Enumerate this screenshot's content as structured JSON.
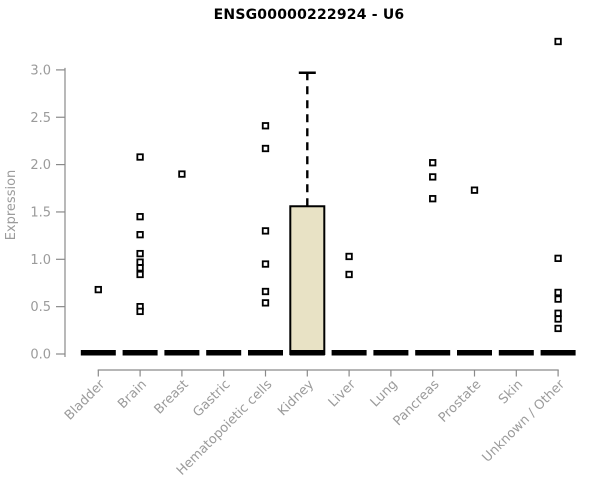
{
  "chart_data": {
    "type": "boxplot",
    "title": "ENSG00000222924 - U6",
    "ylabel": "Expression",
    "xlabel": "",
    "grid": false,
    "legend": "none",
    "yaxis": {
      "min": 0.0,
      "max": 3.0,
      "tick_values": [
        0.0,
        0.5,
        1.0,
        1.5,
        2.0,
        2.5,
        3.0
      ],
      "tick_labels": [
        "0.0",
        "0.5",
        "1.0",
        "1.5",
        "2.0",
        "2.5",
        "3.0"
      ]
    },
    "categories": [
      "Bladder",
      "Brain",
      "Breast",
      "Gastric",
      "Hematopoietic cells",
      "Kidney",
      "Liver",
      "Lung",
      "Pancreas",
      "Prostate",
      "Skin",
      "Unknown / Other"
    ],
    "boxes": [
      {
        "category": "Bladder",
        "q1": 0,
        "median": 0,
        "q3": 0,
        "whisker_low": 0,
        "whisker_high": 0,
        "outliers": [
          0.68
        ]
      },
      {
        "category": "Brain",
        "q1": 0,
        "median": 0,
        "q3": 0,
        "whisker_low": 0,
        "whisker_high": 0,
        "outliers": [
          2.08,
          1.45,
          1.26,
          1.06,
          0.97,
          0.91,
          0.84,
          0.5,
          0.45
        ]
      },
      {
        "category": "Breast",
        "q1": 0,
        "median": 0,
        "q3": 0,
        "whisker_low": 0,
        "whisker_high": 0,
        "outliers": [
          1.9
        ]
      },
      {
        "category": "Gastric",
        "q1": 0,
        "median": 0,
        "q3": 0,
        "whisker_low": 0,
        "whisker_high": 0,
        "outliers": []
      },
      {
        "category": "Hematopoietic cells",
        "q1": 0,
        "median": 0,
        "q3": 0,
        "whisker_low": 0,
        "whisker_high": 0,
        "outliers": [
          2.41,
          2.17,
          1.3,
          0.95,
          0.66,
          0.54
        ]
      },
      {
        "category": "Kidney",
        "q1": 0,
        "median": 0,
        "q3": 1.56,
        "whisker_low": 0,
        "whisker_high": 2.97,
        "outliers": []
      },
      {
        "category": "Liver",
        "q1": 0,
        "median": 0,
        "q3": 0,
        "whisker_low": 0,
        "whisker_high": 0,
        "outliers": [
          1.03,
          0.84
        ]
      },
      {
        "category": "Lung",
        "q1": 0,
        "median": 0,
        "q3": 0,
        "whisker_low": 0,
        "whisker_high": 0,
        "outliers": []
      },
      {
        "category": "Pancreas",
        "q1": 0,
        "median": 0,
        "q3": 0,
        "whisker_low": 0,
        "whisker_high": 0,
        "outliers": [
          2.02,
          1.87,
          1.64
        ]
      },
      {
        "category": "Prostate",
        "q1": 0,
        "median": 0,
        "q3": 0,
        "whisker_low": 0,
        "whisker_high": 0,
        "outliers": [
          1.73
        ]
      },
      {
        "category": "Skin",
        "q1": 0,
        "median": 0,
        "q3": 0,
        "whisker_low": 0,
        "whisker_high": 0,
        "outliers": []
      },
      {
        "category": "Unknown / Other",
        "q1": 0,
        "median": 0,
        "q3": 0,
        "whisker_low": 0,
        "whisker_high": 0,
        "outliers": [
          3.3,
          1.01,
          0.65,
          0.58,
          0.43,
          0.37,
          0.27
        ]
      }
    ],
    "colors": {
      "box_fill": "#e8e2c5",
      "box_stroke": "#000000",
      "median": "#000000",
      "whisker": "#000000",
      "outlier_fill": "#ffffff",
      "outlier_stroke": "#000000",
      "axis": "#8a8a8a",
      "tick_label": "#9b9b9b",
      "title": "#000000",
      "background": "#ffffff"
    }
  }
}
